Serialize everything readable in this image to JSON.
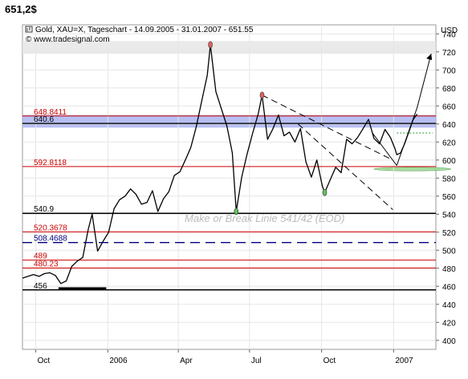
{
  "page": {
    "heading": "651,2$"
  },
  "chart_data": {
    "type": "line",
    "title": "Gold, XAU=X, Tageschart - 14.09.2005 - 31.01.2007 - 651.55",
    "subtitle": "© www.tradesignal.com",
    "ylabel": "USD",
    "ylim": [
      390,
      750
    ],
    "y_ticks": [
      400,
      420,
      440,
      460,
      480,
      500,
      520,
      540,
      560,
      580,
      600,
      620,
      640,
      660,
      680,
      700,
      720,
      740
    ],
    "x_ticks": [
      {
        "label": "Oct",
        "date": "2005-10-01"
      },
      {
        "label": "2006",
        "date": "2006-01-01"
      },
      {
        "label": "Apr",
        "date": "2006-04-01"
      },
      {
        "label": "Jul",
        "date": "2006-07-01"
      },
      {
        "label": "Oct",
        "date": "2006-10-01"
      },
      {
        "label": "2007",
        "date": "2007-01-01"
      }
    ],
    "xlim": [
      "2005-09-14",
      "2007-02-24"
    ],
    "grid": true,
    "series": [
      {
        "color": "#000000",
        "points": [
          [
            "2005-09-14",
            469
          ],
          [
            "2005-09-21",
            471
          ],
          [
            "2005-09-28",
            473
          ],
          [
            "2005-10-05",
            471
          ],
          [
            "2005-10-12",
            474
          ],
          [
            "2005-10-19",
            475
          ],
          [
            "2005-10-26",
            472
          ],
          [
            "2005-11-02",
            463
          ],
          [
            "2005-11-09",
            466
          ],
          [
            "2005-11-16",
            482
          ],
          [
            "2005-11-23",
            488
          ],
          [
            "2005-11-30",
            492
          ],
          [
            "2005-12-07",
            523
          ],
          [
            "2005-12-12",
            540
          ],
          [
            "2005-12-19",
            499
          ],
          [
            "2005-12-26",
            510
          ],
          [
            "2006-01-02",
            520
          ],
          [
            "2006-01-09",
            546
          ],
          [
            "2006-01-16",
            556
          ],
          [
            "2006-01-23",
            560
          ],
          [
            "2006-01-30",
            568
          ],
          [
            "2006-02-06",
            562
          ],
          [
            "2006-02-13",
            551
          ],
          [
            "2006-02-20",
            553
          ],
          [
            "2006-02-27",
            566
          ],
          [
            "2006-03-06",
            543
          ],
          [
            "2006-03-13",
            557
          ],
          [
            "2006-03-20",
            565
          ],
          [
            "2006-03-27",
            583
          ],
          [
            "2006-04-03",
            587
          ],
          [
            "2006-04-10",
            600
          ],
          [
            "2006-04-17",
            614
          ],
          [
            "2006-04-24",
            637
          ],
          [
            "2006-05-01",
            666
          ],
          [
            "2006-05-08",
            694
          ],
          [
            "2006-05-12",
            728
          ],
          [
            "2006-05-19",
            676
          ],
          [
            "2006-05-26",
            657
          ],
          [
            "2006-06-02",
            638
          ],
          [
            "2006-06-09",
            608
          ],
          [
            "2006-06-14",
            543
          ],
          [
            "2006-06-21",
            581
          ],
          [
            "2006-06-28",
            607
          ],
          [
            "2006-07-05",
            630
          ],
          [
            "2006-07-12",
            651
          ],
          [
            "2006-07-17",
            672
          ],
          [
            "2006-07-24",
            623
          ],
          [
            "2006-07-31",
            635
          ],
          [
            "2006-08-07",
            650
          ],
          [
            "2006-08-14",
            627
          ],
          [
            "2006-08-21",
            631
          ],
          [
            "2006-08-28",
            620
          ],
          [
            "2006-09-04",
            635
          ],
          [
            "2006-09-11",
            598
          ],
          [
            "2006-09-18",
            581
          ],
          [
            "2006-09-25",
            600
          ],
          [
            "2006-10-02",
            571
          ],
          [
            "2006-10-05",
            564
          ],
          [
            "2006-10-12",
            578
          ],
          [
            "2006-10-19",
            592
          ],
          [
            "2006-10-26",
            586
          ],
          [
            "2006-11-02",
            623
          ],
          [
            "2006-11-09",
            618
          ],
          [
            "2006-11-16",
            625
          ],
          [
            "2006-11-23",
            635
          ],
          [
            "2006-11-30",
            645
          ],
          [
            "2006-12-07",
            624
          ],
          [
            "2006-12-14",
            618
          ],
          [
            "2006-12-21",
            634
          ],
          [
            "2006-12-28",
            625
          ],
          [
            "2007-01-03",
            612
          ],
          [
            "2007-01-05",
            606
          ],
          [
            "2007-01-10",
            608
          ],
          [
            "2007-01-15",
            618
          ],
          [
            "2007-01-22",
            635
          ],
          [
            "2007-01-26",
            645
          ],
          [
            "2007-01-31",
            651
          ]
        ]
      }
    ],
    "horizontal_levels": [
      {
        "value": 648.8411,
        "label": "648.8411",
        "color": "#cc0000",
        "style": "solid"
      },
      {
        "value": 640.6,
        "label": "640.6",
        "color": "#000000",
        "style": "solid"
      },
      {
        "value": 592.8118,
        "label": "592.8118",
        "color": "#cc0000",
        "style": "solid"
      },
      {
        "value": 540.9,
        "label": "540.9",
        "color": "#000000",
        "style": "solid"
      },
      {
        "value": 520.3678,
        "label": "520.3678",
        "color": "#cc0000",
        "style": "solid"
      },
      {
        "value": 508.4688,
        "label": "508.4688",
        "color": "#00007f",
        "style": "dashed"
      },
      {
        "value": 489,
        "label": "489",
        "color": "#cc0000",
        "style": "solid"
      },
      {
        "value": 480.23,
        "label": "480.23",
        "color": "#cc0000",
        "style": "solid"
      },
      {
        "value": 456,
        "label": "456",
        "color": "#000000",
        "style": "solid"
      }
    ],
    "zones": [
      {
        "from": 636,
        "to": 650,
        "color": "#aab4f0"
      },
      {
        "from": 718,
        "to": 732,
        "color": "#e6e6e6"
      }
    ],
    "annotations": [
      {
        "text": "Make or Break Linie 541/42 (EOD)",
        "date": "2006-06-25",
        "value": 536
      }
    ],
    "markers": [
      {
        "date": "2006-05-12",
        "value": 728,
        "color": "#e06060"
      },
      {
        "date": "2006-07-17",
        "value": 672,
        "color": "#e06060"
      },
      {
        "date": "2006-06-14",
        "value": 543,
        "color": "#60c060"
      },
      {
        "date": "2006-10-05",
        "value": 564,
        "color": "#60c060"
      }
    ]
  }
}
